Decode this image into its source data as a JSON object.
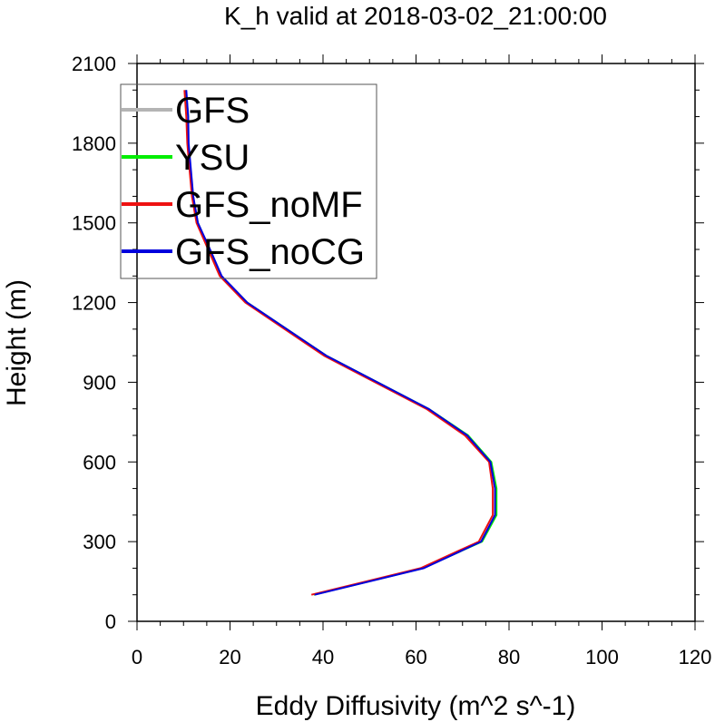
{
  "chart_data": {
    "type": "line",
    "title": "K_h valid at 2018-03-02_21:00:00",
    "xlabel": "Eddy Diffusivity (m^2 s^-1)",
    "ylabel": "Height (m)",
    "xlim": [
      0,
      120
    ],
    "ylim": [
      0,
      2100
    ],
    "xticks": [
      "0",
      "20",
      "40",
      "60",
      "80",
      "100",
      "120"
    ],
    "yticks": [
      "0",
      "300",
      "600",
      "900",
      "1200",
      "1500",
      "1800",
      "2100"
    ],
    "grid": false,
    "legend_position": "top-left",
    "series": [
      {
        "name": "GFS",
        "color": "#b4b4b4",
        "points": [
          [
            38,
            100
          ],
          [
            61.5,
            200
          ],
          [
            74,
            300
          ],
          [
            77,
            400
          ],
          [
            77,
            500
          ],
          [
            76,
            600
          ],
          [
            71,
            700
          ],
          [
            62.5,
            800
          ],
          [
            40.5,
            1000
          ],
          [
            23.5,
            1200
          ],
          [
            18,
            1300
          ],
          [
            15.5,
            1400
          ],
          [
            13,
            1500
          ],
          [
            12,
            1600
          ],
          [
            11.5,
            1700
          ],
          [
            11,
            1800
          ],
          [
            11,
            1900
          ],
          [
            10.5,
            2000
          ]
        ]
      },
      {
        "name": "YSU",
        "color": "#00ee00",
        "points": [
          [
            38,
            100
          ],
          [
            61.5,
            200
          ],
          [
            74.2,
            300
          ],
          [
            77.3,
            400
          ],
          [
            77.3,
            500
          ],
          [
            76.2,
            600
          ],
          [
            71.2,
            700
          ],
          [
            62.7,
            800
          ],
          [
            40.7,
            1000
          ],
          [
            23.7,
            1200
          ],
          [
            18.1,
            1300
          ],
          [
            15.6,
            1400
          ],
          [
            13.1,
            1500
          ],
          [
            12,
            1600
          ],
          [
            11.5,
            1700
          ],
          [
            11,
            1800
          ],
          [
            11,
            1900
          ],
          [
            10.5,
            2000
          ]
        ]
      },
      {
        "name": "GFS_noMF",
        "color": "#ee1111",
        "points": [
          [
            37.5,
            100
          ],
          [
            61,
            200
          ],
          [
            73.5,
            300
          ],
          [
            76.5,
            400
          ],
          [
            76.5,
            500
          ],
          [
            75.7,
            600
          ],
          [
            70.5,
            700
          ],
          [
            62.2,
            800
          ],
          [
            40.2,
            1000
          ],
          [
            23.3,
            1200
          ],
          [
            17.8,
            1300
          ],
          [
            15.3,
            1400
          ],
          [
            12.8,
            1500
          ],
          [
            11.8,
            1600
          ],
          [
            11.3,
            1700
          ],
          [
            10.8,
            1800
          ],
          [
            10.6,
            1900
          ],
          [
            10.2,
            2000
          ]
        ]
      },
      {
        "name": "GFS_noCG",
        "color": "#0000dd",
        "points": [
          [
            38.2,
            100
          ],
          [
            61.7,
            200
          ],
          [
            74,
            300
          ],
          [
            77,
            400
          ],
          [
            77,
            500
          ],
          [
            76,
            600
          ],
          [
            71,
            700
          ],
          [
            62.7,
            800
          ],
          [
            40.7,
            1000
          ],
          [
            23.7,
            1200
          ],
          [
            18.2,
            1300
          ],
          [
            15.7,
            1400
          ],
          [
            13.1,
            1500
          ],
          [
            12.1,
            1600
          ],
          [
            11.6,
            1700
          ],
          [
            11.1,
            1800
          ],
          [
            11,
            1900
          ],
          [
            10.6,
            2000
          ]
        ]
      }
    ]
  }
}
